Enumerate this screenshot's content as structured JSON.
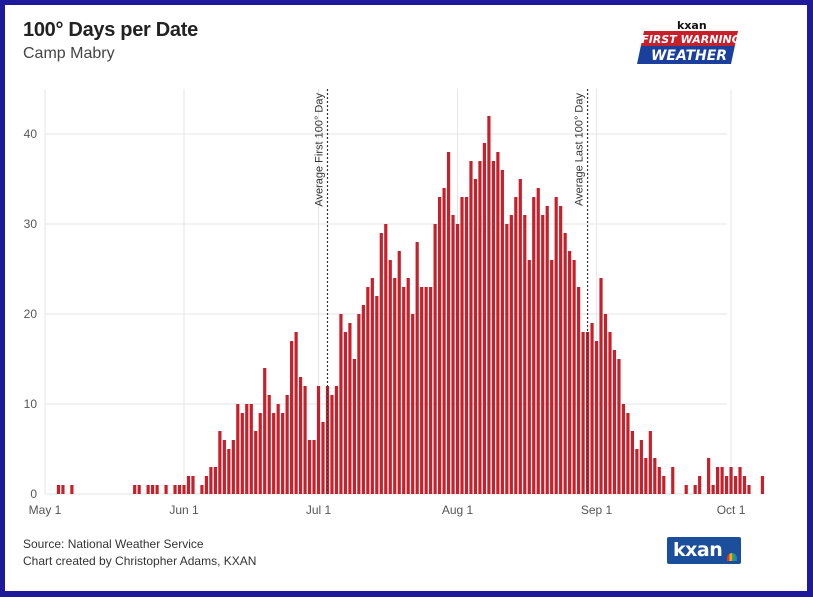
{
  "header": {
    "title": "100° Days per Date",
    "subtitle": "Camp Mabry"
  },
  "logo": {
    "small_text": "kxan",
    "line1": "FIRST WARNING",
    "line2": "WEATHER"
  },
  "footer": {
    "source": "Source: National Weather Service",
    "credit": "Chart created by Christopher Adams, KXAN",
    "brand": "kxan"
  },
  "colors": {
    "bar": "#c8202a",
    "grid": "#e6e6e6",
    "frame": "#1f1a9c"
  },
  "chart_data": {
    "type": "bar",
    "title": "100° Days per Date",
    "xlabel": "",
    "ylabel": "",
    "ylim": [
      0,
      45
    ],
    "yticks": [
      0,
      10,
      20,
      30,
      40
    ],
    "xticks": [
      {
        "label": "May 1",
        "day": 1
      },
      {
        "label": "Jun 1",
        "day": 32
      },
      {
        "label": "Jul 1",
        "day": 62
      },
      {
        "label": "Aug 1",
        "day": 93
      },
      {
        "label": "Sep 1",
        "day": 124
      },
      {
        "label": "Oct 1",
        "day": 154
      }
    ],
    "x_start_label": "May 1",
    "annotations": [
      {
        "label": "Average First 100° Day",
        "day": 64
      },
      {
        "label": "Average Last 100° Day",
        "day": 122
      }
    ],
    "values": [
      0,
      0,
      0,
      1,
      1,
      0,
      1,
      0,
      0,
      0,
      0,
      0,
      0,
      0,
      0,
      0,
      0,
      0,
      0,
      0,
      1,
      1,
      0,
      1,
      1,
      1,
      0,
      1,
      0,
      1,
      1,
      1,
      2,
      2,
      0,
      1,
      2,
      3,
      3,
      7,
      6,
      5,
      6,
      10,
      9,
      10,
      10,
      7,
      9,
      14,
      11,
      9,
      10,
      9,
      11,
      17,
      18,
      13,
      12,
      6,
      6,
      12,
      8,
      12,
      11,
      12,
      20,
      18,
      19,
      15,
      20,
      21,
      23,
      24,
      22,
      29,
      30,
      26,
      24,
      27,
      23,
      24,
      20,
      28,
      23,
      23,
      23,
      30,
      33,
      34,
      38,
      31,
      30,
      33,
      33,
      37,
      35,
      37,
      39,
      42,
      37,
      38,
      36,
      30,
      31,
      33,
      35,
      31,
      26,
      33,
      34,
      31,
      32,
      26,
      33,
      32,
      29,
      27,
      26,
      23,
      18,
      18,
      19,
      17,
      24,
      20,
      18,
      16,
      15,
      10,
      9,
      7,
      5,
      6,
      4,
      7,
      4,
      3,
      2,
      0,
      3,
      0,
      0,
      1,
      0,
      1,
      2,
      0,
      4,
      1,
      3,
      3,
      2,
      3,
      2,
      3,
      2,
      1,
      0,
      0,
      2
    ]
  }
}
